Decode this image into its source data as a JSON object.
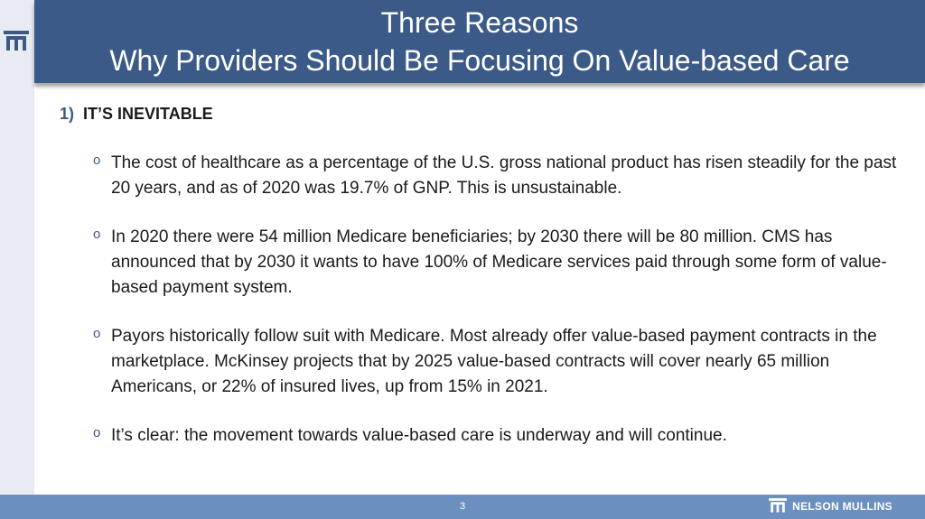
{
  "header": {
    "title_line1": "Three Reasons",
    "title_line2": "Why Providers Should Be Focusing On Value-based Care"
  },
  "section": {
    "number": "1)",
    "heading": "IT’S INEVITABLE"
  },
  "bullets": [
    {
      "text": "The cost of healthcare as a percentage of the U.S. gross national product has risen steadily for the past 20 years, and as of 2020 was 19.7% of GNP. This is unsustainable."
    },
    {
      "text": "In 2020 there were 54 million Medicare beneficiaries; by 2030 there will be 80 million. CMS has announced that by 2030 it wants to have 100% of Medicare services paid through some form of value-based payment system."
    },
    {
      "text": "Payors historically follow suit with Medicare. Most already offer value-based payment contracts in the marketplace. McKinsey projects that by 2025 value-based contracts will cover nearly 65 million Americans, or 22% of insured lives, up from 15% in 2021."
    },
    {
      "text": "It’s clear: the movement towards value-based care is underway and will continue."
    }
  ],
  "bullet_marker": "o",
  "footer": {
    "page_number": "3",
    "brand": "NELSON MULLINS"
  },
  "colors": {
    "title_bar": "#3b5a87",
    "footer_bar": "#6b8fbf",
    "left_strip": "#e8ecf2"
  },
  "icons": {
    "corner_logo": "nelson-mullins-logo-icon",
    "footer_logo": "nelson-mullins-logo-icon"
  }
}
